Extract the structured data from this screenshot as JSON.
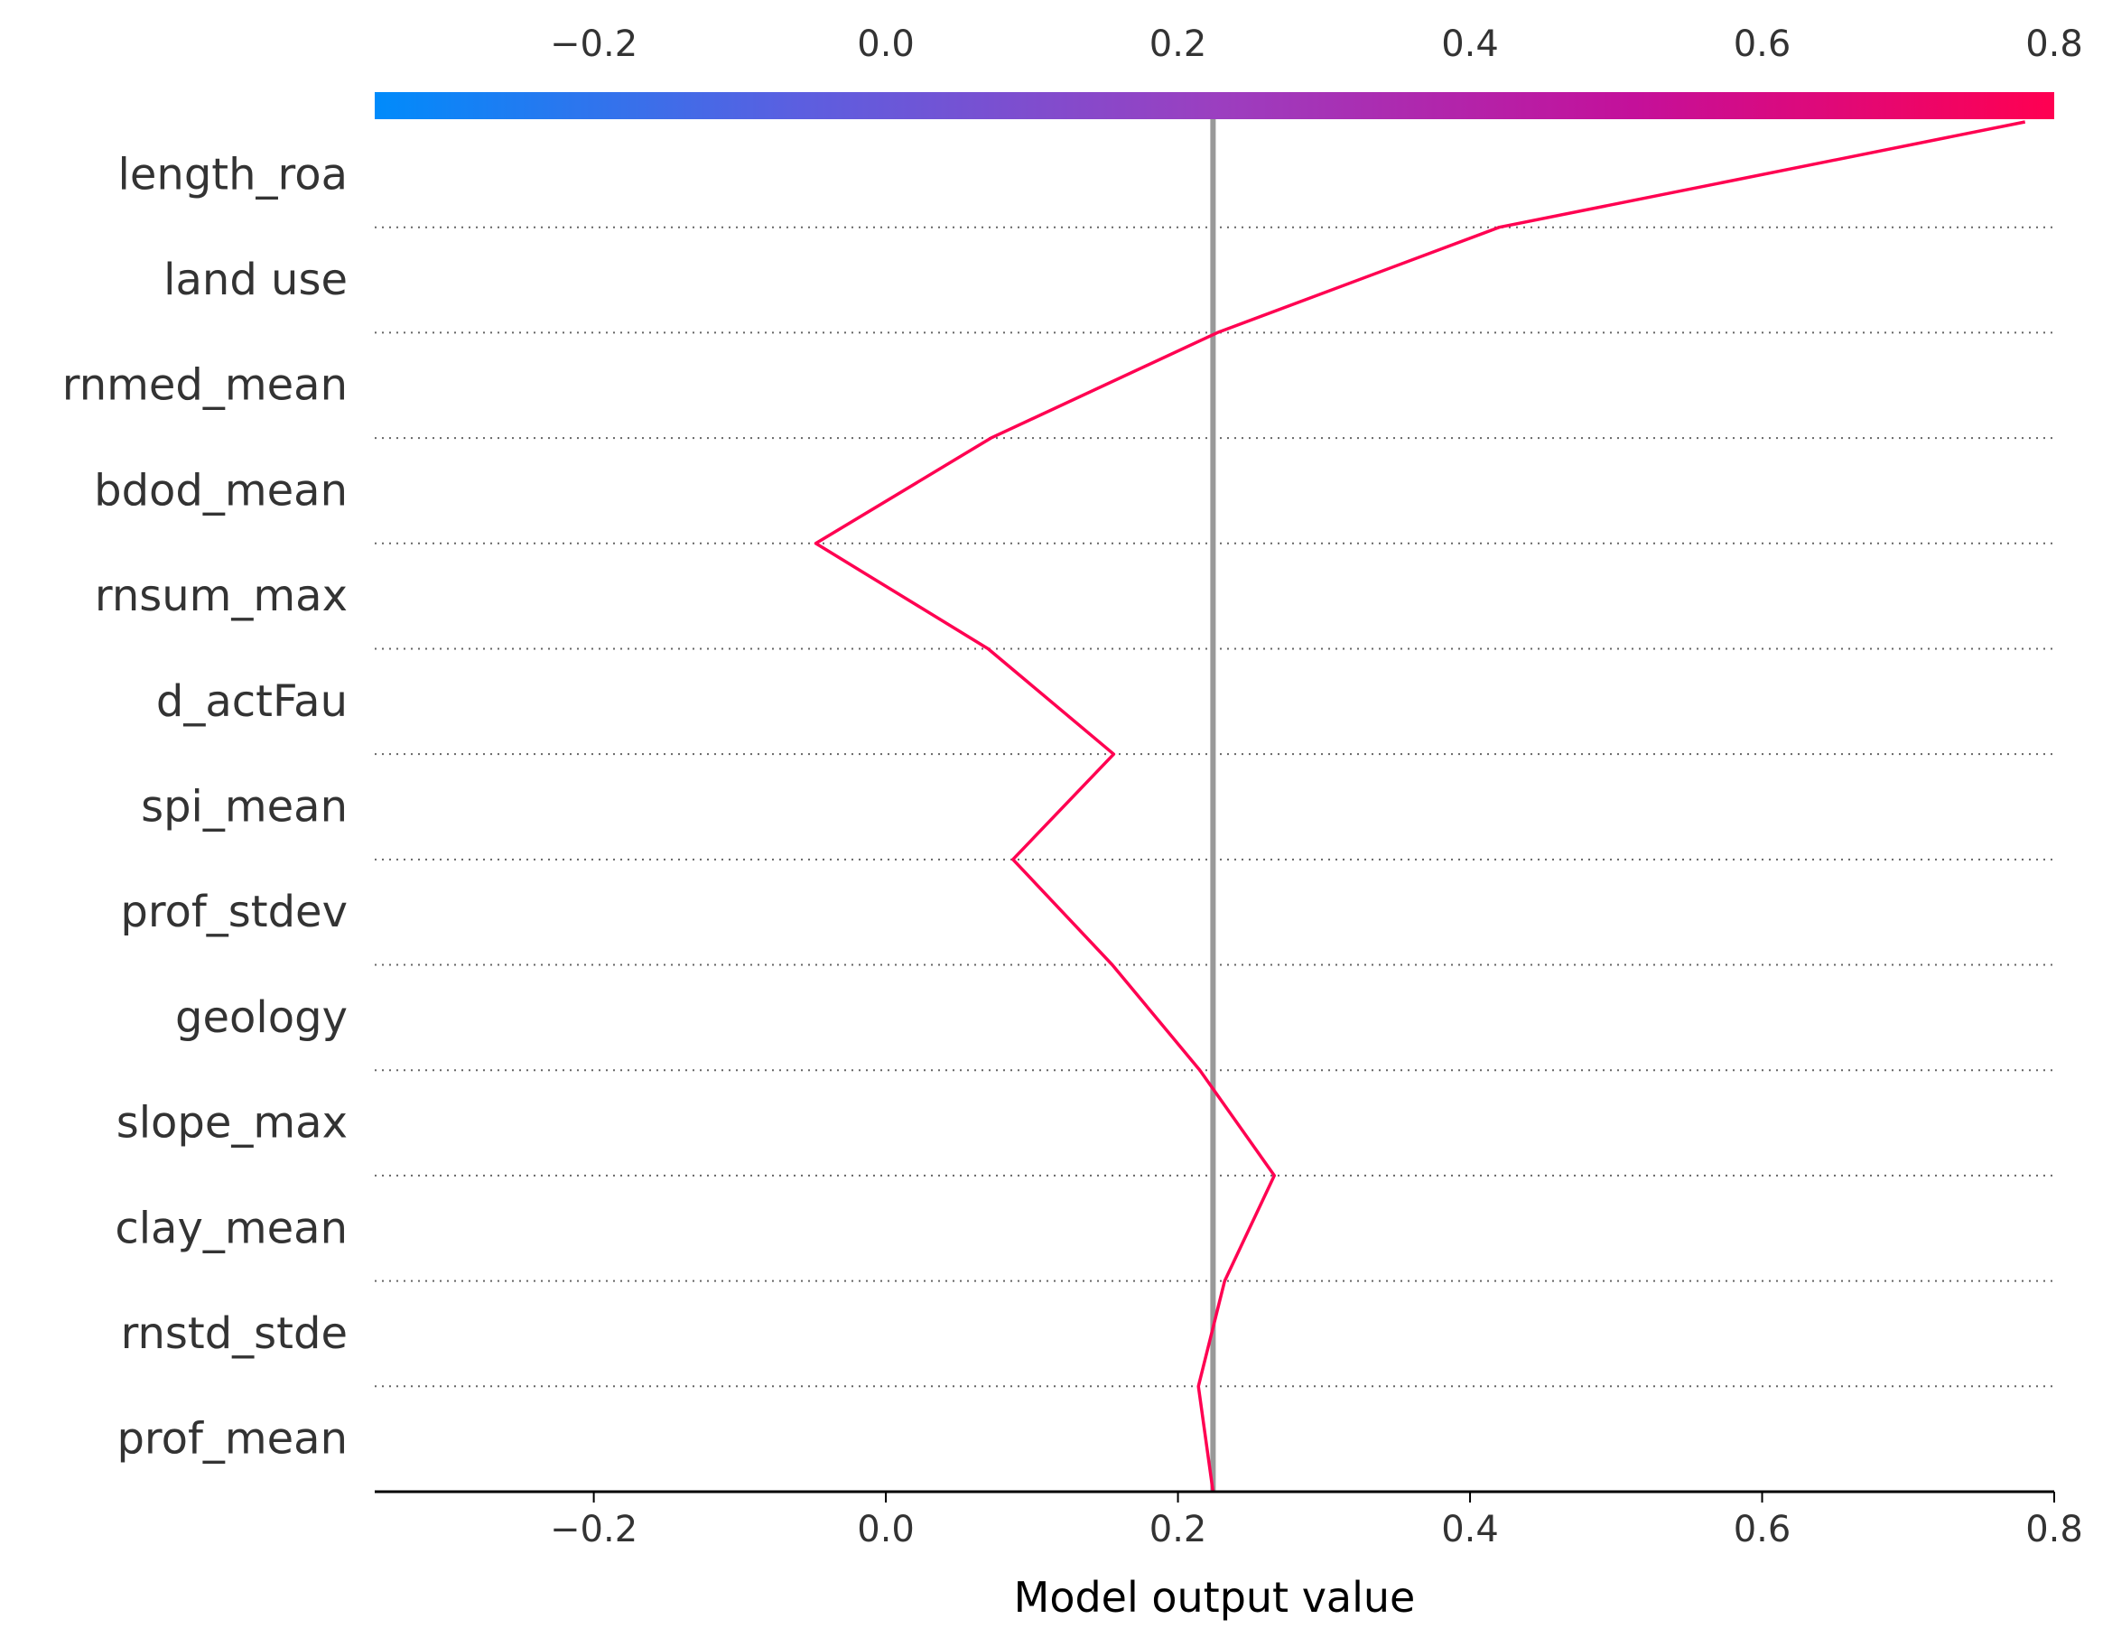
{
  "chart_data": {
    "type": "decision_plot",
    "xlabel": "Model output value",
    "xlim": [
      -0.35,
      0.8
    ],
    "xticks": [
      -0.2,
      0.0,
      0.2,
      0.4,
      0.6,
      0.8
    ],
    "xtick_labels": [
      "−0.2",
      "0.0",
      "0.2",
      "0.4",
      "0.6",
      "0.8"
    ],
    "base_value": 0.224,
    "colorbar": {
      "range": [
        -0.35,
        0.8
      ],
      "colors": [
        "#008bfb",
        "#5b5fe0",
        "#9b3fc0",
        "#c4109a",
        "#ff0051"
      ]
    },
    "grid": "dotted horizontal separators",
    "features": [
      "length_roa",
      "land use",
      "rnmed_mean",
      "bdod_mean",
      "rnsum_max",
      "d_actFau",
      "spi_mean",
      "prof_stdev",
      "geology",
      "slope_max",
      "clay_mean",
      "rnstd_stde",
      "prof_mean"
    ],
    "line_values": [
      0.78,
      0.42,
      0.227,
      0.072,
      -0.048,
      0.07,
      0.156,
      0.087,
      0.155,
      0.215,
      0.266,
      0.232,
      0.214,
      0.224
    ],
    "line_color": "#ff0051",
    "base_line_color": "#999999"
  }
}
